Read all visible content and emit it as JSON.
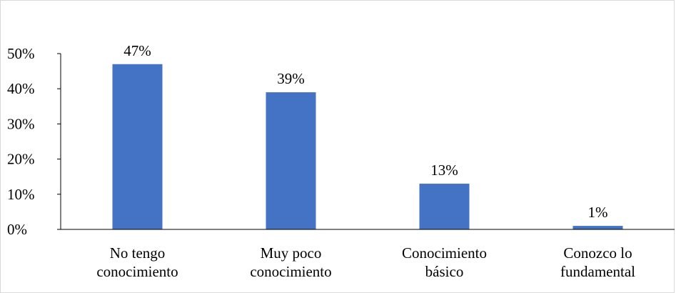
{
  "chart_data": {
    "type": "bar",
    "categories": [
      [
        "No tengo",
        "conocimiento"
      ],
      [
        "Muy poco",
        "conocimiento"
      ],
      [
        "Conocimiento",
        "básico"
      ],
      [
        "Conozco lo",
        "fundamental"
      ]
    ],
    "values": [
      47,
      39,
      13,
      1
    ],
    "data_labels": [
      "47%",
      "39%",
      "13%",
      "1%"
    ],
    "y_ticks": [
      "0%",
      "10%",
      "20%",
      "30%",
      "40%",
      "50%"
    ],
    "ylim": [
      0,
      50
    ],
    "grid": false,
    "legend": "none",
    "bar_color": "#4472C4",
    "axis_color": "#000000"
  }
}
